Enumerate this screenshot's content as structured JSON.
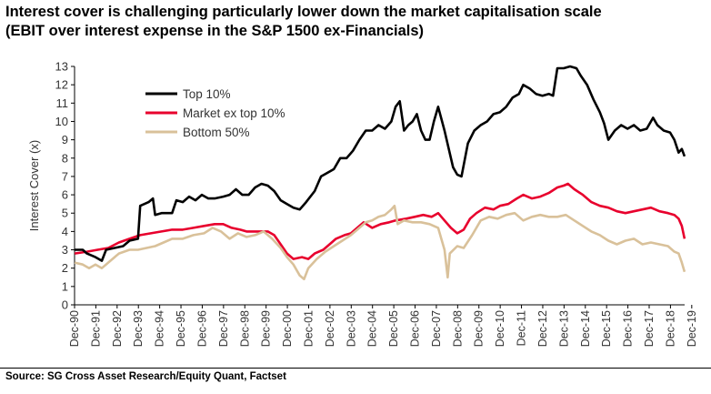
{
  "chart_data": {
    "type": "line",
    "title": "Interest cover is challenging particularly lower down the market capitalisation scale",
    "subtitle": "(EBIT over interest expense in the S&P 1500 ex-Financials)",
    "xlabel": "",
    "ylabel": "Interest Cover (x)",
    "ylim": [
      0,
      13
    ],
    "yticks": [
      0,
      1,
      2,
      3,
      4,
      5,
      6,
      7,
      8,
      9,
      10,
      11,
      12,
      13
    ],
    "xlim": [
      1990.917,
      2019.583
    ],
    "x_tick_labels": [
      "Dec-90",
      "Dec-91",
      "Dec-92",
      "Dec-93",
      "Dec-94",
      "Dec-95",
      "Dec-96",
      "Dec-97",
      "Dec-98",
      "Dec-99",
      "Dec-00",
      "Dec-01",
      "Dec-02",
      "Dec-03",
      "Dec-04",
      "Dec-05",
      "Dec-06",
      "Dec-07",
      "Dec-08",
      "Dec-09",
      "Dec-10",
      "Dec-11",
      "Dec-12",
      "Dec-13",
      "Dec-14",
      "Dec-15",
      "Dec-16",
      "Dec-17",
      "Dec-18",
      "Dec-19"
    ],
    "x_tick_years": [
      1990.917,
      1991.917,
      1992.917,
      1993.917,
      1994.917,
      1995.917,
      1996.917,
      1997.917,
      1998.917,
      1999.917,
      2000.917,
      2001.917,
      2002.917,
      2003.917,
      2004.917,
      2005.917,
      2006.917,
      2007.917,
      2008.917,
      2009.917,
      2010.917,
      2011.917,
      2012.917,
      2013.917,
      2014.917,
      2015.917,
      2016.917,
      2017.917,
      2018.917,
      2019.917
    ],
    "grid": false,
    "legend_position": "top-left",
    "series": [
      {
        "name": "Top 10%",
        "color": "#000000",
        "points": [
          [
            1990.92,
            3.0
          ],
          [
            1991.3,
            3.0
          ],
          [
            1991.5,
            2.8
          ],
          [
            1991.9,
            2.6
          ],
          [
            1992.2,
            2.4
          ],
          [
            1992.4,
            3.0
          ],
          [
            1992.8,
            3.1
          ],
          [
            1993.2,
            3.2
          ],
          [
            1993.5,
            3.5
          ],
          [
            1993.9,
            3.6
          ],
          [
            1994.0,
            5.4
          ],
          [
            1994.4,
            5.6
          ],
          [
            1994.6,
            5.8
          ],
          [
            1994.7,
            4.9
          ],
          [
            1995.0,
            5.0
          ],
          [
            1995.5,
            5.0
          ],
          [
            1995.7,
            5.7
          ],
          [
            1996.0,
            5.6
          ],
          [
            1996.3,
            5.9
          ],
          [
            1996.6,
            5.7
          ],
          [
            1996.9,
            6.0
          ],
          [
            1997.2,
            5.8
          ],
          [
            1997.5,
            5.8
          ],
          [
            1997.9,
            5.9
          ],
          [
            1998.2,
            6.0
          ],
          [
            1998.5,
            6.3
          ],
          [
            1998.8,
            6.0
          ],
          [
            1999.1,
            6.0
          ],
          [
            1999.4,
            6.4
          ],
          [
            1999.7,
            6.6
          ],
          [
            2000.0,
            6.5
          ],
          [
            2000.3,
            6.2
          ],
          [
            2000.6,
            5.7
          ],
          [
            2000.9,
            5.5
          ],
          [
            2001.2,
            5.3
          ],
          [
            2001.5,
            5.2
          ],
          [
            2001.8,
            5.6
          ],
          [
            2002.2,
            6.2
          ],
          [
            2002.5,
            7.0
          ],
          [
            2002.8,
            7.2
          ],
          [
            2003.1,
            7.4
          ],
          [
            2003.4,
            8.0
          ],
          [
            2003.7,
            8.0
          ],
          [
            2004.0,
            8.4
          ],
          [
            2004.3,
            9.0
          ],
          [
            2004.6,
            9.5
          ],
          [
            2004.9,
            9.5
          ],
          [
            2005.2,
            9.8
          ],
          [
            2005.5,
            9.6
          ],
          [
            2005.8,
            10.0
          ],
          [
            2006.0,
            10.8
          ],
          [
            2006.2,
            11.1
          ],
          [
            2006.4,
            9.5
          ],
          [
            2006.6,
            9.8
          ],
          [
            2006.8,
            10.0
          ],
          [
            2007.0,
            10.4
          ],
          [
            2007.2,
            9.5
          ],
          [
            2007.4,
            9.0
          ],
          [
            2007.6,
            9.0
          ],
          [
            2007.8,
            10.0
          ],
          [
            2008.0,
            10.8
          ],
          [
            2008.3,
            9.5
          ],
          [
            2008.5,
            8.5
          ],
          [
            2008.7,
            7.5
          ],
          [
            2008.9,
            7.1
          ],
          [
            2009.1,
            7.0
          ],
          [
            2009.4,
            8.8
          ],
          [
            2009.7,
            9.5
          ],
          [
            2010.0,
            9.8
          ],
          [
            2010.3,
            10.0
          ],
          [
            2010.6,
            10.4
          ],
          [
            2010.9,
            10.5
          ],
          [
            2011.2,
            10.8
          ],
          [
            2011.5,
            11.3
          ],
          [
            2011.8,
            11.5
          ],
          [
            2012.0,
            12.0
          ],
          [
            2012.3,
            11.8
          ],
          [
            2012.6,
            11.5
          ],
          [
            2012.9,
            11.4
          ],
          [
            2013.2,
            11.5
          ],
          [
            2013.4,
            11.4
          ],
          [
            2013.6,
            12.9
          ],
          [
            2013.9,
            12.9
          ],
          [
            2014.2,
            13.0
          ],
          [
            2014.5,
            12.9
          ],
          [
            2014.7,
            12.5
          ],
          [
            2015.0,
            12.0
          ],
          [
            2015.3,
            11.2
          ],
          [
            2015.6,
            10.5
          ],
          [
            2015.8,
            9.9
          ],
          [
            2016.0,
            9.0
          ],
          [
            2016.3,
            9.5
          ],
          [
            2016.6,
            9.8
          ],
          [
            2016.9,
            9.6
          ],
          [
            2017.2,
            9.8
          ],
          [
            2017.5,
            9.5
          ],
          [
            2017.8,
            9.6
          ],
          [
            2018.1,
            10.2
          ],
          [
            2018.3,
            9.8
          ],
          [
            2018.6,
            9.5
          ],
          [
            2018.9,
            9.4
          ],
          [
            2019.1,
            9.0
          ],
          [
            2019.3,
            8.3
          ],
          [
            2019.45,
            8.5
          ],
          [
            2019.58,
            8.1
          ]
        ]
      },
      {
        "name": "Market ex top 10%",
        "color": "#e8002d",
        "points": [
          [
            1990.92,
            2.8
          ],
          [
            1991.5,
            2.9
          ],
          [
            1992.0,
            3.0
          ],
          [
            1992.5,
            3.1
          ],
          [
            1993.0,
            3.4
          ],
          [
            1993.5,
            3.6
          ],
          [
            1994.0,
            3.8
          ],
          [
            1994.5,
            3.9
          ],
          [
            1995.0,
            4.0
          ],
          [
            1995.5,
            4.1
          ],
          [
            1996.0,
            4.1
          ],
          [
            1996.5,
            4.2
          ],
          [
            1997.0,
            4.3
          ],
          [
            1997.5,
            4.4
          ],
          [
            1997.9,
            4.4
          ],
          [
            1998.3,
            4.2
          ],
          [
            1998.7,
            4.1
          ],
          [
            1999.0,
            4.0
          ],
          [
            1999.5,
            4.0
          ],
          [
            2000.0,
            4.0
          ],
          [
            2000.3,
            3.8
          ],
          [
            2000.6,
            3.3
          ],
          [
            2000.9,
            2.8
          ],
          [
            2001.2,
            2.5
          ],
          [
            2001.6,
            2.6
          ],
          [
            2001.9,
            2.5
          ],
          [
            2002.2,
            2.8
          ],
          [
            2002.6,
            3.0
          ],
          [
            2002.9,
            3.3
          ],
          [
            2003.2,
            3.6
          ],
          [
            2003.6,
            3.8
          ],
          [
            2003.9,
            3.9
          ],
          [
            2004.2,
            4.2
          ],
          [
            2004.5,
            4.5
          ],
          [
            2004.9,
            4.2
          ],
          [
            2005.3,
            4.4
          ],
          [
            2005.7,
            4.5
          ],
          [
            2006.0,
            4.6
          ],
          [
            2006.5,
            4.7
          ],
          [
            2006.9,
            4.8
          ],
          [
            2007.3,
            4.9
          ],
          [
            2007.7,
            4.8
          ],
          [
            2008.0,
            5.0
          ],
          [
            2008.3,
            4.6
          ],
          [
            2008.6,
            4.2
          ],
          [
            2008.9,
            3.9
          ],
          [
            2009.2,
            4.1
          ],
          [
            2009.5,
            4.7
          ],
          [
            2009.8,
            5.0
          ],
          [
            2010.2,
            5.3
          ],
          [
            2010.6,
            5.2
          ],
          [
            2010.9,
            5.4
          ],
          [
            2011.3,
            5.5
          ],
          [
            2011.7,
            5.8
          ],
          [
            2012.0,
            6.0
          ],
          [
            2012.4,
            5.8
          ],
          [
            2012.8,
            5.9
          ],
          [
            2013.2,
            6.1
          ],
          [
            2013.6,
            6.4
          ],
          [
            2013.9,
            6.5
          ],
          [
            2014.1,
            6.6
          ],
          [
            2014.4,
            6.3
          ],
          [
            2014.8,
            6.0
          ],
          [
            2015.2,
            5.6
          ],
          [
            2015.6,
            5.4
          ],
          [
            2016.0,
            5.3
          ],
          [
            2016.4,
            5.1
          ],
          [
            2016.8,
            5.0
          ],
          [
            2017.2,
            5.1
          ],
          [
            2017.6,
            5.2
          ],
          [
            2018.0,
            5.3
          ],
          [
            2018.4,
            5.1
          ],
          [
            2018.8,
            5.0
          ],
          [
            2019.1,
            4.9
          ],
          [
            2019.3,
            4.7
          ],
          [
            2019.45,
            4.3
          ],
          [
            2019.58,
            3.6
          ]
        ]
      },
      {
        "name": "Bottom 50%",
        "color": "#d9c19a",
        "points": [
          [
            1990.92,
            2.3
          ],
          [
            1991.3,
            2.2
          ],
          [
            1991.6,
            2.0
          ],
          [
            1991.9,
            2.2
          ],
          [
            1992.2,
            2.0
          ],
          [
            1992.6,
            2.4
          ],
          [
            1993.0,
            2.8
          ],
          [
            1993.5,
            3.0
          ],
          [
            1993.9,
            3.0
          ],
          [
            1994.3,
            3.1
          ],
          [
            1994.7,
            3.2
          ],
          [
            1995.1,
            3.4
          ],
          [
            1995.5,
            3.6
          ],
          [
            1996.0,
            3.6
          ],
          [
            1996.5,
            3.8
          ],
          [
            1997.0,
            3.9
          ],
          [
            1997.4,
            4.2
          ],
          [
            1997.8,
            4.0
          ],
          [
            1998.2,
            3.6
          ],
          [
            1998.6,
            3.9
          ],
          [
            1999.0,
            3.7
          ],
          [
            1999.4,
            3.8
          ],
          [
            1999.8,
            4.0
          ],
          [
            2000.2,
            3.6
          ],
          [
            2000.6,
            3.1
          ],
          [
            2000.9,
            2.6
          ],
          [
            2001.2,
            2.2
          ],
          [
            2001.5,
            1.6
          ],
          [
            2001.7,
            1.4
          ],
          [
            2001.9,
            2.0
          ],
          [
            2002.3,
            2.5
          ],
          [
            2002.7,
            2.9
          ],
          [
            2003.1,
            3.2
          ],
          [
            2003.5,
            3.5
          ],
          [
            2003.9,
            3.8
          ],
          [
            2004.3,
            4.2
          ],
          [
            2004.6,
            4.5
          ],
          [
            2004.9,
            4.6
          ],
          [
            2005.2,
            4.8
          ],
          [
            2005.5,
            4.9
          ],
          [
            2005.8,
            5.2
          ],
          [
            2005.95,
            5.4
          ],
          [
            2006.1,
            4.4
          ],
          [
            2006.4,
            4.6
          ],
          [
            2006.8,
            4.5
          ],
          [
            2007.2,
            4.5
          ],
          [
            2007.6,
            4.4
          ],
          [
            2008.0,
            4.2
          ],
          [
            2008.3,
            3.0
          ],
          [
            2008.45,
            1.5
          ],
          [
            2008.55,
            2.8
          ],
          [
            2008.9,
            3.2
          ],
          [
            2009.2,
            3.1
          ],
          [
            2009.6,
            3.8
          ],
          [
            2010.0,
            4.6
          ],
          [
            2010.4,
            4.8
          ],
          [
            2010.8,
            4.7
          ],
          [
            2011.2,
            4.9
          ],
          [
            2011.6,
            5.0
          ],
          [
            2012.0,
            4.6
          ],
          [
            2012.4,
            4.8
          ],
          [
            2012.8,
            4.9
          ],
          [
            2013.2,
            4.8
          ],
          [
            2013.6,
            4.8
          ],
          [
            2014.0,
            4.9
          ],
          [
            2014.4,
            4.6
          ],
          [
            2014.8,
            4.3
          ],
          [
            2015.2,
            4.0
          ],
          [
            2015.6,
            3.8
          ],
          [
            2016.0,
            3.5
          ],
          [
            2016.4,
            3.3
          ],
          [
            2016.8,
            3.5
          ],
          [
            2017.2,
            3.6
          ],
          [
            2017.6,
            3.3
          ],
          [
            2018.0,
            3.4
          ],
          [
            2018.4,
            3.3
          ],
          [
            2018.8,
            3.2
          ],
          [
            2019.1,
            2.9
          ],
          [
            2019.3,
            2.8
          ],
          [
            2019.45,
            2.3
          ],
          [
            2019.58,
            1.8
          ]
        ]
      }
    ]
  },
  "source": "Source: SG Cross Asset Research/Equity Quant, Factset"
}
